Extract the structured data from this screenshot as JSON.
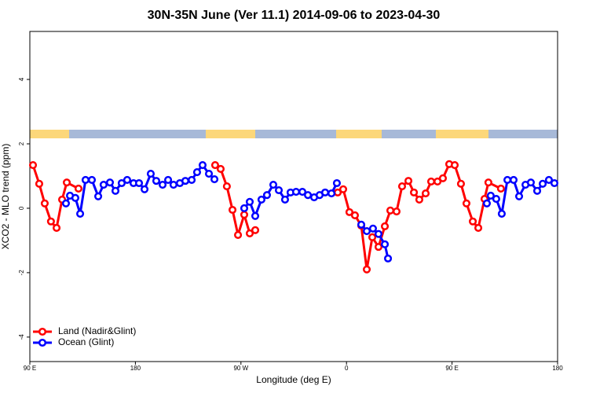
{
  "chart_data": {
    "type": "line",
    "title": "30N-35N June (Ver 11.1)   2014-09-06 to 2023-04-30",
    "x_label": "Longitude (deg E)",
    "y_label": "XCO2 - MLO trend (ppm)",
    "xlim": [
      90,
      540
    ],
    "ylim": [
      -4.76,
      5.49
    ],
    "xticks": [
      {
        "value": 90,
        "label": "90 E"
      },
      180,
      {
        "value": 270,
        "label": "90 W"
      },
      {
        "value": 360,
        "label": "0"
      },
      {
        "value": 450,
        "label": "90 E"
      },
      {
        "value": 540,
        "label": "180"
      }
    ],
    "yticks": [
      -4,
      -2,
      0,
      2,
      4
    ],
    "legend": "bottom-left",
    "series": [
      {
        "name": "Land (Nadir&Glint)",
        "color": "#ff0000",
        "x": [
          92.7,
          98,
          102.7,
          108,
          112.8,
          117.5,
          121.5,
          131.5,
          null,
          248,
          252.7,
          258,
          262.8,
          267.5,
          272.8,
          277.5,
          282.2,
          null,
          352.5,
          357.2,
          362.5,
          367.2,
          372.6,
          377.3,
          382,
          387.3,
          392.7,
          397.4,
          402.7,
          407.4,
          412.8,
          417.5,
          422.1,
          427.5,
          432.2,
          437.6,
          442.2,
          447.6,
          452.3,
          457.6,
          462.3,
          467.7,
          472.4,
          477.7,
          481,
          491.7
        ],
        "values": [
          1.34,
          0.76,
          0.15,
          -0.41,
          -0.61,
          0.27,
          0.8,
          0.61,
          null,
          1.34,
          1.22,
          0.68,
          -0.05,
          -0.83,
          -0.2,
          -0.78,
          -0.68,
          null,
          0.49,
          0.59,
          -0.12,
          -0.22,
          -0.54,
          -1.9,
          -0.9,
          -1.2,
          -0.56,
          -0.07,
          -0.1,
          0.68,
          0.85,
          0.49,
          0.27,
          0.46,
          0.83,
          0.83,
          0.93,
          1.37,
          1.34,
          0.76,
          0.15,
          -0.41,
          -0.61,
          0.29,
          0.8,
          0.61
        ]
      },
      {
        "name": "Ocean (Glint)",
        "color": "#0000ff",
        "x": [
          120.8,
          124.2,
          128.8,
          132.9,
          137.5,
          142.9,
          148.3,
          152.9,
          158.3,
          163,
          168.3,
          173,
          178.4,
          183.1,
          187.8,
          193.1,
          197.8,
          203.2,
          207.9,
          212.5,
          217.9,
          222.6,
          228,
          232.6,
          237.3,
          242.7,
          247.4,
          null,
          272.8,
          277.5,
          282.2,
          287.5,
          292.2,
          297.6,
          302.3,
          307.6,
          312.3,
          317,
          322.4,
          327.1,
          332.4,
          337.1,
          341.8,
          347.2,
          351.8,
          null,
          372.6,
          377.3,
          382.6,
          387.3,
          392.7,
          395.4,
          null,
          479.7,
          483,
          487.7,
          492.4,
          497.2,
          502.5,
          507.2,
          512.6,
          517.2,
          522.6,
          527.3,
          532.6,
          537.3
        ],
        "values": [
          0.15,
          0.39,
          0.32,
          -0.17,
          0.88,
          0.88,
          0.37,
          0.73,
          0.8,
          0.54,
          0.78,
          0.88,
          0.78,
          0.78,
          0.59,
          1.07,
          0.85,
          0.73,
          0.88,
          0.73,
          0.78,
          0.85,
          0.88,
          1.12,
          1.34,
          1.07,
          0.9,
          null,
          0,
          0.2,
          -0.24,
          0.27,
          0.41,
          0.73,
          0.56,
          0.27,
          0.49,
          0.51,
          0.51,
          0.41,
          0.34,
          0.41,
          0.49,
          0.46,
          0.78,
          null,
          -0.51,
          -0.71,
          -0.63,
          -0.8,
          -1.12,
          -1.56,
          null,
          0.15,
          0.39,
          0.29,
          -0.17,
          0.88,
          0.88,
          0.37,
          0.73,
          0.8,
          0.54,
          0.76,
          0.88,
          0.78
        ]
      }
    ]
  }
}
